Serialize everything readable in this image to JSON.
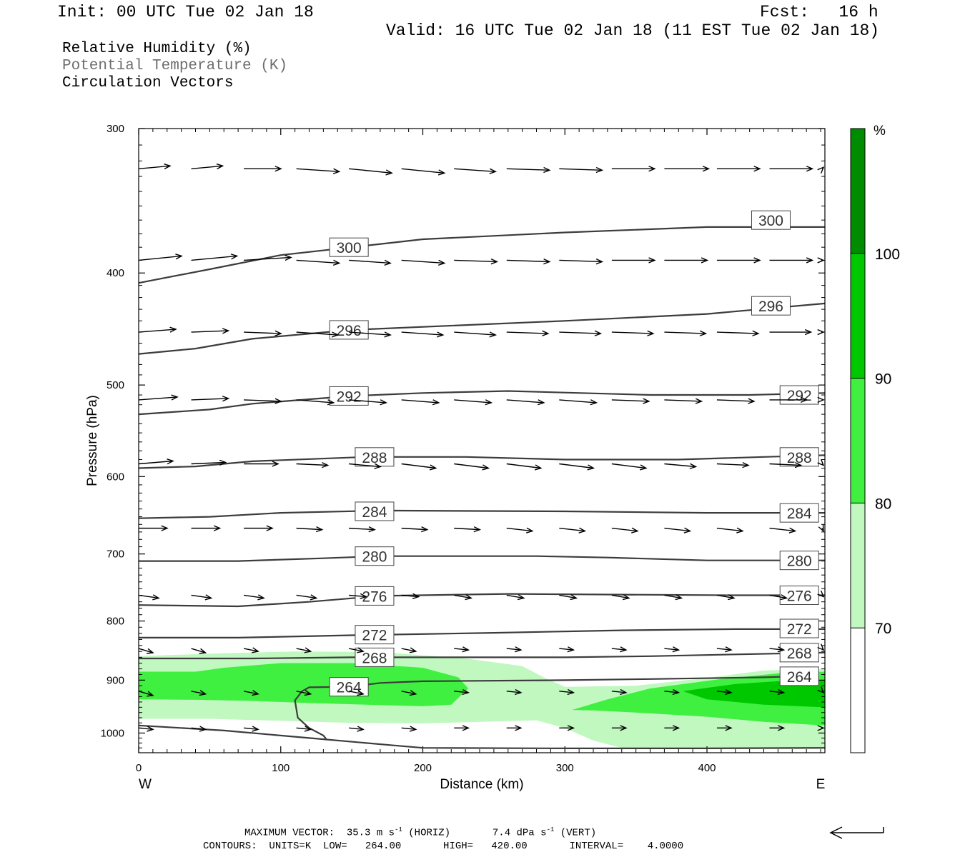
{
  "header": {
    "init": "Init: 00 UTC Tue 02 Jan 18",
    "fcst": "Fcst:   16 h",
    "valid": "Valid: 16 UTC Tue 02 Jan 18 (11 EST Tue 02 Jan 18)"
  },
  "legend": {
    "rh": "Relative Humidity (%)",
    "theta": "Potential Temperature (K)",
    "vectors": "Circulation Vectors"
  },
  "footer": {
    "max_vector": "MAXIMUM VECTOR:  35.3 m s",
    "max_vector_unit1": "-1",
    "horiz": " (HORIZ)",
    "vert_val": "7.4 dPa s",
    "max_vector_unit2": "-1",
    "vert": " (VERT)",
    "contours": "CONTOURS:  UNITS=K  LOW=   264.00       HIGH=   420.00       INTERVAL=    4.0000"
  },
  "colors": {
    "rh70": "#c0f8c0",
    "rh80": "#40f040",
    "rh90": "#00c800",
    "rh100": "#008c00",
    "contour": "#3c3c3c"
  },
  "chart_data": {
    "type": "cross-section",
    "xlabel": "Distance (km)",
    "ylabel": "Pressure (hPa)",
    "xlim": [
      0,
      483
    ],
    "ylim": [
      1040,
      300
    ],
    "y_scale": "log",
    "x_ticks": [
      0,
      100,
      200,
      300,
      400
    ],
    "y_ticks": [
      300,
      400,
      500,
      600,
      700,
      800,
      900,
      1000
    ],
    "x_end_labels": {
      "left": "W",
      "right": "E"
    },
    "colorbar": {
      "unit": "%",
      "levels": [
        70,
        80,
        90,
        100
      ],
      "colors": [
        "#ffffff",
        "#c0f8c0",
        "#40f040",
        "#00c800",
        "#008c00"
      ]
    },
    "rh_regions": [
      {
        "level": 70,
        "points": [
          [
            0,
            858
          ],
          [
            60,
            853
          ],
          [
            110,
            850
          ],
          [
            170,
            851
          ],
          [
            230,
            862
          ],
          [
            270,
            875
          ],
          [
            285,
            895
          ],
          [
            300,
            912
          ],
          [
            350,
            910
          ],
          [
            400,
            896
          ],
          [
            440,
            883
          ],
          [
            483,
            880
          ],
          [
            483,
            1030
          ],
          [
            450,
            1030
          ],
          [
            400,
            1030
          ],
          [
            340,
            1030
          ],
          [
            320,
            1015
          ],
          [
            300,
            990
          ],
          [
            280,
            975
          ],
          [
            240,
            978
          ],
          [
            200,
            981
          ],
          [
            150,
            980
          ],
          [
            100,
            976
          ],
          [
            50,
            972
          ],
          [
            0,
            972
          ]
        ]
      },
      {
        "level": 80,
        "points": [
          [
            0,
            885
          ],
          [
            40,
            885
          ],
          [
            60,
            878
          ],
          [
            100,
            870
          ],
          [
            150,
            870
          ],
          [
            200,
            878
          ],
          [
            225,
            895
          ],
          [
            232,
            915
          ],
          [
            220,
            945
          ],
          [
            200,
            948
          ],
          [
            160,
            945
          ],
          [
            120,
            942
          ],
          [
            80,
            938
          ],
          [
            40,
            936
          ],
          [
            0,
            935
          ]
        ]
      },
      {
        "level": 80,
        "points": [
          [
            305,
            955
          ],
          [
            330,
            935
          ],
          [
            360,
            915
          ],
          [
            410,
            898
          ],
          [
            450,
            888
          ],
          [
            483,
            885
          ],
          [
            483,
            985
          ],
          [
            440,
            978
          ],
          [
            400,
            968
          ],
          [
            350,
            960
          ],
          [
            320,
            956
          ]
        ]
      },
      {
        "level": 90,
        "points": [
          [
            383,
            920
          ],
          [
            420,
            907
          ],
          [
            450,
            902
          ],
          [
            483,
            900
          ],
          [
            483,
            950
          ],
          [
            440,
            945
          ],
          [
            400,
            935
          ]
        ]
      }
    ],
    "theta_contours": [
      {
        "value": 300,
        "points": [
          [
            0,
            408
          ],
          [
            50,
            397
          ],
          [
            100,
            386
          ],
          [
            150,
            380
          ],
          [
            200,
            374
          ],
          [
            300,
            369
          ],
          [
            400,
            365
          ],
          [
            483,
            365
          ]
        ],
        "labels": [
          [
            148,
            380
          ],
          [
            445,
            360
          ]
        ]
      },
      {
        "value": 296,
        "points": [
          [
            0,
            470
          ],
          [
            40,
            465
          ],
          [
            80,
            456
          ],
          [
            150,
            448
          ],
          [
            300,
            440
          ],
          [
            400,
            434
          ],
          [
            483,
            425
          ]
        ],
        "labels": [
          [
            148,
            448
          ],
          [
            445,
            427
          ]
        ]
      },
      {
        "value": 292,
        "points": [
          [
            0,
            530
          ],
          [
            50,
            525
          ],
          [
            80,
            519
          ],
          [
            150,
            511
          ],
          [
            200,
            508
          ],
          [
            260,
            506
          ],
          [
            360,
            510
          ],
          [
            430,
            510
          ],
          [
            483,
            508
          ]
        ],
        "labels": [
          [
            148,
            511
          ],
          [
            465,
            510
          ]
        ]
      },
      {
        "value": 288,
        "points": [
          [
            0,
            590
          ],
          [
            40,
            588
          ],
          [
            80,
            582
          ],
          [
            160,
            577
          ],
          [
            230,
            577
          ],
          [
            300,
            580
          ],
          [
            380,
            580
          ],
          [
            440,
            577
          ],
          [
            483,
            575
          ]
        ],
        "labels": [
          [
            166,
            577
          ],
          [
            465,
            577
          ]
        ]
      },
      {
        "value": 284,
        "points": [
          [
            0,
            652
          ],
          [
            50,
            650
          ],
          [
            100,
            645
          ],
          [
            170,
            642
          ],
          [
            300,
            643
          ],
          [
            400,
            645
          ],
          [
            483,
            645
          ]
        ],
        "labels": [
          [
            166,
            643
          ],
          [
            465,
            645
          ]
        ]
      },
      {
        "value": 280,
        "points": [
          [
            0,
            710
          ],
          [
            70,
            710
          ],
          [
            130,
            706
          ],
          [
            170,
            703
          ],
          [
            280,
            703
          ],
          [
            330,
            705
          ],
          [
            400,
            709
          ],
          [
            483,
            709
          ]
        ],
        "labels": [
          [
            166,
            703
          ],
          [
            465,
            709
          ]
        ]
      },
      {
        "value": 276,
        "points": [
          [
            0,
            775
          ],
          [
            70,
            777
          ],
          [
            120,
            770
          ],
          [
            170,
            761
          ],
          [
            260,
            758
          ],
          [
            340,
            759
          ],
          [
            420,
            760
          ],
          [
            483,
            760
          ]
        ],
        "labels": [
          [
            166,
            761
          ],
          [
            465,
            760
          ]
        ]
      },
      {
        "value": 272,
        "points": [
          [
            0,
            827
          ],
          [
            70,
            827
          ],
          [
            150,
            823
          ],
          [
            250,
            819
          ],
          [
            340,
            815
          ],
          [
            420,
            813
          ],
          [
            483,
            813
          ]
        ],
        "labels": [
          [
            166,
            822
          ],
          [
            465,
            812
          ]
        ]
      },
      {
        "value": 268,
        "points": [
          [
            0,
            862
          ],
          [
            80,
            862
          ],
          [
            150,
            860
          ],
          [
            300,
            860
          ],
          [
            360,
            858
          ],
          [
            420,
            855
          ],
          [
            483,
            852
          ]
        ],
        "labels": [
          [
            166,
            860
          ],
          [
            465,
            852
          ]
        ]
      },
      {
        "value": 264,
        "points": [
          [
            465,
            893
          ],
          [
            440,
            895
          ],
          [
            360,
            898
          ],
          [
            300,
            900
          ],
          [
            200,
            902
          ],
          [
            170,
            905
          ],
          [
            148,
            912
          ],
          [
            120,
            913
          ],
          [
            115,
            920
          ],
          [
            110,
            937
          ],
          [
            112,
            970
          ],
          [
            120,
            990
          ],
          [
            130,
            1005
          ],
          [
            132,
            1012
          ]
        ],
        "labels": [
          [
            148,
            912
          ],
          [
            465,
            893
          ]
        ]
      },
      {
        "value": 264,
        "points": [
          [
            0,
            985
          ],
          [
            60,
            995
          ],
          [
            120,
            1010
          ],
          [
            180,
            1025
          ],
          [
            200,
            1030
          ],
          [
            300,
            1031
          ],
          [
            400,
            1031
          ],
          [
            483,
            1030
          ]
        ],
        "labels": []
      }
    ],
    "vectors_hpa": [
      {
        "p": 325,
        "xs": [
          0,
          37,
          74,
          111,
          148,
          185,
          222,
          259,
          296,
          333,
          370,
          407,
          444,
          481
        ],
        "dx": [
          22,
          22,
          26,
          30,
          30,
          30,
          29,
          30,
          30,
          30,
          31,
          30,
          30,
          30
        ],
        "dy": [
          -2,
          -2,
          0,
          2,
          3,
          3,
          2,
          1,
          1,
          0,
          0,
          0,
          0,
          -1
        ]
      },
      {
        "p": 390,
        "xs": [
          0,
          37,
          74,
          111,
          148,
          185,
          222,
          259,
          296,
          333,
          370,
          407,
          444,
          481
        ],
        "dx": [
          30,
          32,
          33,
          30,
          29,
          30,
          30,
          30,
          30,
          30,
          30,
          30,
          30,
          30
        ],
        "dy": [
          -3,
          -3,
          -2,
          2,
          2,
          2,
          1,
          1,
          1,
          0,
          0,
          0,
          0,
          0
        ]
      },
      {
        "p": 450,
        "xs": [
          0,
          37,
          74,
          111,
          148,
          185,
          222,
          259,
          296,
          333,
          370,
          407,
          444,
          481
        ],
        "dx": [
          26,
          26,
          26,
          29,
          29,
          29,
          29,
          29,
          29,
          29,
          29,
          29,
          29,
          29
        ],
        "dy": [
          -2,
          -1,
          1,
          2,
          2,
          2,
          2,
          1,
          1,
          1,
          1,
          1,
          0,
          0
        ]
      },
      {
        "p": 515,
        "xs": [
          0,
          37,
          74,
          111,
          148,
          185,
          222,
          259,
          296,
          333,
          370,
          407,
          444,
          481
        ],
        "dx": [
          27,
          26,
          26,
          26,
          26,
          26,
          26,
          26,
          26,
          26,
          26,
          26,
          26,
          26
        ],
        "dy": [
          -2,
          -1,
          1,
          2,
          2,
          2,
          2,
          2,
          2,
          1,
          1,
          1,
          0,
          0
        ]
      },
      {
        "p": 585,
        "xs": [
          0,
          37,
          74,
          111,
          148,
          185,
          222,
          259,
          296,
          333,
          370,
          407,
          444,
          481
        ],
        "dx": [
          24,
          24,
          24,
          22,
          22,
          24,
          24,
          24,
          24,
          24,
          22,
          22,
          22,
          22
        ],
        "dy": [
          -2,
          -1,
          0,
          1,
          2,
          3,
          3,
          3,
          3,
          3,
          2,
          1,
          1,
          1
        ]
      },
      {
        "p": 665,
        "xs": [
          0,
          37,
          74,
          111,
          148,
          185,
          222,
          259,
          296,
          333,
          370,
          407,
          444,
          481
        ],
        "dx": [
          20,
          20,
          20,
          18,
          18,
          18,
          18,
          18,
          18,
          18,
          18,
          18,
          18,
          18
        ],
        "dy": [
          0,
          0,
          0,
          1,
          1,
          1,
          1,
          2,
          2,
          2,
          2,
          2,
          2,
          2
        ]
      },
      {
        "p": 760,
        "xs": [
          0,
          37,
          74,
          111,
          148,
          185,
          222,
          259,
          296,
          333,
          370,
          407,
          444,
          481
        ],
        "dx": [
          14,
          14,
          14,
          14,
          12,
          12,
          12,
          12,
          12,
          12,
          12,
          12,
          12,
          12
        ],
        "dy": [
          2,
          2,
          2,
          2,
          1,
          1,
          2,
          2,
          2,
          2,
          2,
          2,
          2,
          1
        ]
      },
      {
        "p": 845,
        "xs": [
          0,
          37,
          74,
          111,
          148,
          185,
          222,
          259,
          296,
          333,
          370,
          407,
          444,
          481
        ],
        "dx": [
          10,
          10,
          10,
          10,
          10,
          10,
          10,
          10,
          10,
          10,
          10,
          10,
          10,
          10
        ],
        "dy": [
          3,
          3,
          2,
          2,
          2,
          2,
          1,
          1,
          1,
          1,
          1,
          1,
          1,
          1
        ]
      },
      {
        "p": 920,
        "xs": [
          0,
          37,
          74,
          111,
          148,
          185,
          222,
          259,
          296,
          333,
          370,
          407,
          444,
          481
        ],
        "dx": [
          10,
          10,
          10,
          10,
          10,
          10,
          10,
          10,
          10,
          10,
          10,
          10,
          10,
          10
        ],
        "dy": [
          3,
          2,
          2,
          2,
          2,
          2,
          1,
          1,
          1,
          1,
          1,
          1,
          1,
          1
        ]
      },
      {
        "p": 990,
        "xs": [
          0,
          37,
          74,
          111,
          148,
          185,
          222,
          259,
          296,
          333,
          370,
          407,
          444,
          481
        ],
        "dx": [
          10,
          10,
          10,
          10,
          10,
          10,
          10,
          10,
          10,
          10,
          10,
          10,
          10,
          10
        ],
        "dy": [
          1,
          1,
          1,
          1,
          1,
          1,
          0,
          0,
          0,
          0,
          0,
          0,
          0,
          0
        ]
      }
    ]
  }
}
